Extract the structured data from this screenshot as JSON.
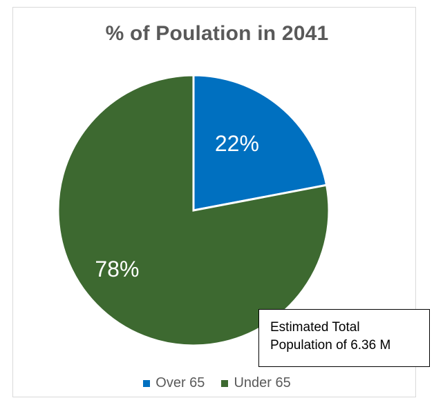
{
  "chart_data": {
    "type": "pie",
    "title": "% of Poulation in 2041",
    "categories": [
      "Over 65",
      "Under 65"
    ],
    "values": [
      22,
      78
    ],
    "data_labels": [
      "22%",
      "78%"
    ],
    "colors": [
      "#0070c0",
      "#3d6930"
    ],
    "start_angle_deg": 0,
    "direction": "clockwise",
    "legend": {
      "position": "bottom",
      "entries": [
        "Over 65",
        "Under 65"
      ]
    },
    "annotation": {
      "line1": "Estimated Total",
      "line2": "Population of 6.36 M"
    }
  }
}
